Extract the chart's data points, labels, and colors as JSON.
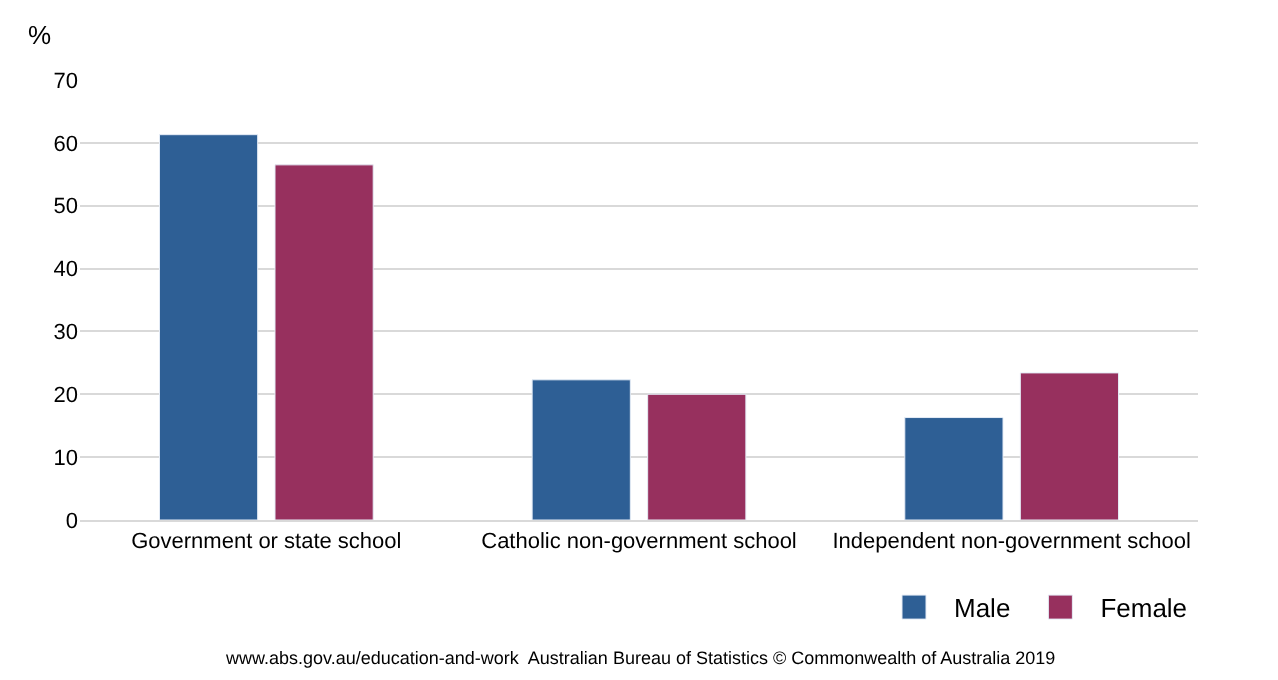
{
  "chart_data": {
    "type": "bar",
    "ylabel": "%",
    "categories": [
      "Government or state school",
      "Catholic non-government school",
      "Independent non-government school"
    ],
    "series": [
      {
        "name": "Male",
        "color": "#2e5f95",
        "values": [
          61.3,
          22.3,
          16.3
        ]
      },
      {
        "name": "Female",
        "color": "#97305e",
        "values": [
          56.5,
          20.0,
          23.4
        ]
      }
    ],
    "ylim": [
      0,
      70
    ],
    "yticks": [
      0,
      10,
      20,
      30,
      40,
      50,
      60,
      70
    ],
    "grid": "y",
    "legend": "bottom right",
    "annotations": [
      "www.abs.gov.au/education-and-work  Australian Bureau of Statistics © Commonwealth of Australia 2019"
    ]
  }
}
